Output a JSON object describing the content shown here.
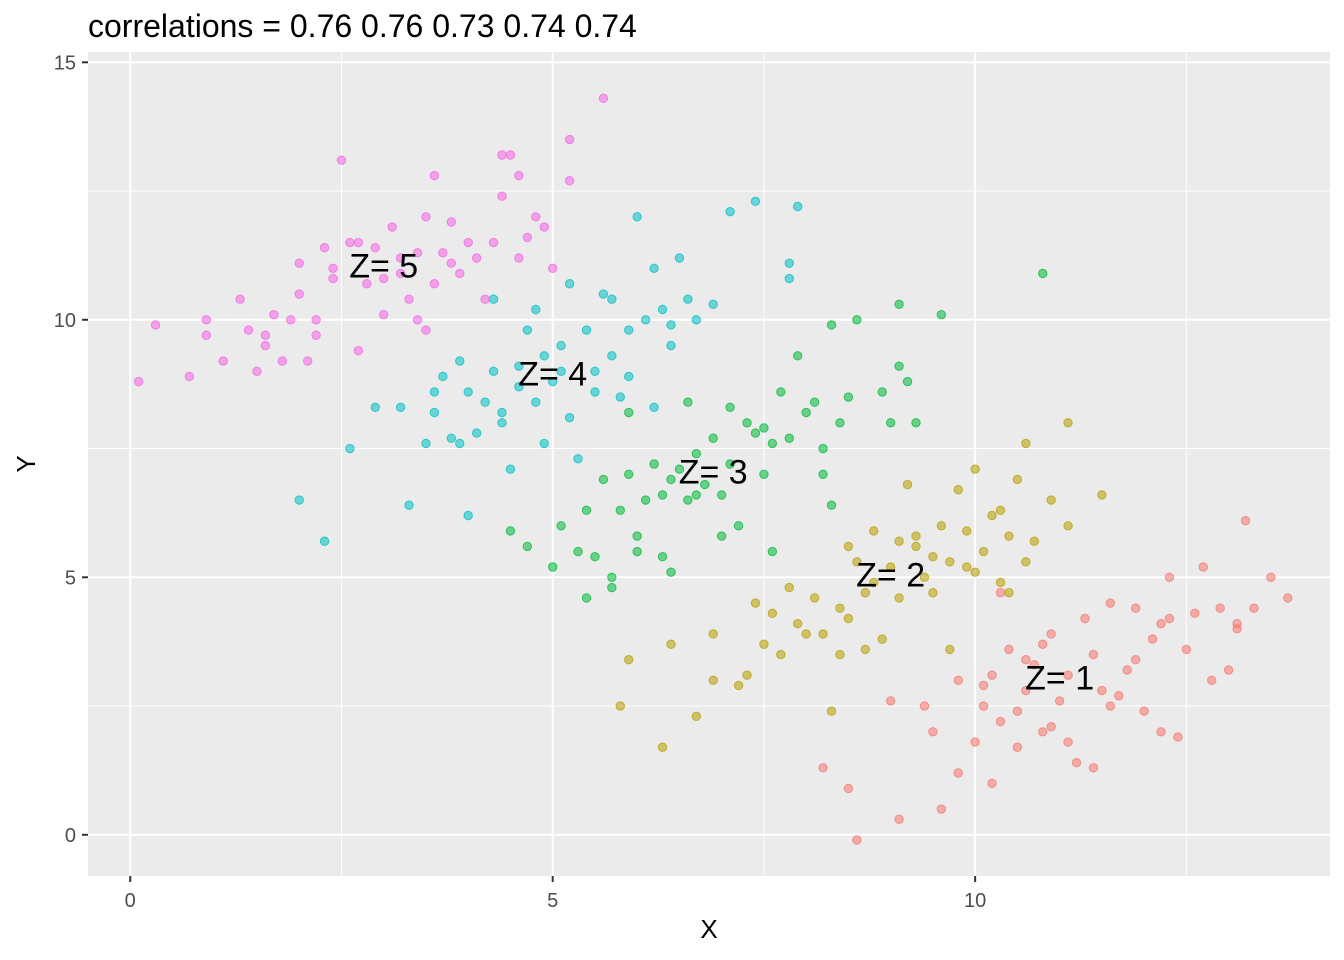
{
  "title": "correlations = 0.76 0.76 0.73 0.74 0.74",
  "chart_data": {
    "type": "scatter",
    "title": "correlations = 0.76 0.76 0.73 0.74 0.74",
    "xlabel": "X",
    "ylabel": "Y",
    "xlim": [
      -0.5,
      14.2
    ],
    "ylim": [
      -0.8,
      15.2
    ],
    "x_ticks": [
      0,
      5,
      10
    ],
    "y_ticks": [
      0,
      5,
      10,
      15
    ],
    "grid": true,
    "background": "#ebebeb",
    "legend": "none",
    "point_opacity": 0.55,
    "series": [
      {
        "name": "Z= 1",
        "color": "#F8766D",
        "label_at": [
          11.0,
          3.0
        ],
        "points": [
          [
            9.6,
            0.5
          ],
          [
            9.8,
            1.2
          ],
          [
            10.0,
            1.8
          ],
          [
            10.1,
            2.5
          ],
          [
            10.2,
            3.1
          ],
          [
            10.3,
            2.2
          ],
          [
            10.4,
            3.6
          ],
          [
            10.5,
            1.7
          ],
          [
            10.5,
            2.4
          ],
          [
            10.6,
            2.8
          ],
          [
            10.7,
            3.3
          ],
          [
            10.8,
            2.0
          ],
          [
            10.9,
            3.9
          ],
          [
            11.0,
            2.6
          ],
          [
            11.1,
            3.1
          ],
          [
            11.2,
            1.4
          ],
          [
            11.3,
            4.2
          ],
          [
            11.4,
            3.5
          ],
          [
            11.5,
            2.8
          ],
          [
            11.6,
            2.5
          ],
          [
            11.8,
            3.2
          ],
          [
            11.9,
            4.4
          ],
          [
            12.0,
            2.4
          ],
          [
            12.1,
            3.8
          ],
          [
            12.2,
            4.1
          ],
          [
            12.3,
            5.0
          ],
          [
            12.4,
            1.9
          ],
          [
            12.5,
            3.6
          ],
          [
            12.6,
            4.3
          ],
          [
            12.7,
            5.2
          ],
          [
            12.9,
            4.4
          ],
          [
            13.0,
            3.2
          ],
          [
            13.1,
            4.1
          ],
          [
            13.2,
            6.1
          ],
          [
            13.3,
            4.4
          ],
          [
            13.5,
            5.0
          ],
          [
            13.7,
            4.6
          ],
          [
            9.1,
            0.3
          ],
          [
            8.5,
            0.9
          ],
          [
            8.6,
            -0.1
          ],
          [
            8.2,
            1.3
          ],
          [
            9.0,
            2.6
          ],
          [
            9.4,
            2.5
          ],
          [
            10.2,
            1.0
          ],
          [
            10.6,
            3.4
          ],
          [
            11.1,
            1.8
          ],
          [
            11.7,
            2.7
          ],
          [
            12.2,
            2.0
          ],
          [
            12.8,
            3.0
          ],
          [
            13.1,
            4.0
          ],
          [
            10.3,
            4.7
          ],
          [
            11.4,
            1.3
          ],
          [
            10.9,
            2.1
          ],
          [
            9.8,
            3.0
          ],
          [
            11.9,
            3.4
          ],
          [
            12.3,
            4.2
          ],
          [
            10.1,
            2.9
          ],
          [
            10.8,
            3.7
          ],
          [
            11.6,
            4.5
          ],
          [
            9.5,
            2.0
          ]
        ]
      },
      {
        "name": "Z= 2",
        "color": "#B79F00",
        "label_at": [
          9.0,
          5.0
        ],
        "points": [
          [
            5.8,
            2.5
          ],
          [
            5.9,
            3.4
          ],
          [
            6.3,
            1.7
          ],
          [
            6.7,
            2.3
          ],
          [
            6.9,
            3.0
          ],
          [
            7.2,
            2.9
          ],
          [
            7.3,
            3.1
          ],
          [
            7.5,
            3.7
          ],
          [
            7.6,
            4.3
          ],
          [
            7.8,
            4.8
          ],
          [
            7.9,
            4.1
          ],
          [
            8.0,
            3.9
          ],
          [
            8.1,
            4.6
          ],
          [
            8.3,
            2.4
          ],
          [
            8.4,
            3.5
          ],
          [
            8.5,
            4.2
          ],
          [
            8.6,
            5.3
          ],
          [
            8.7,
            4.7
          ],
          [
            8.8,
            5.9
          ],
          [
            8.9,
            3.8
          ],
          [
            9.0,
            5.2
          ],
          [
            9.1,
            4.6
          ],
          [
            9.2,
            6.8
          ],
          [
            9.3,
            5.6
          ],
          [
            9.4,
            5.0
          ],
          [
            9.5,
            5.4
          ],
          [
            9.6,
            6.0
          ],
          [
            9.7,
            5.3
          ],
          [
            9.8,
            6.7
          ],
          [
            9.9,
            5.9
          ],
          [
            10.0,
            7.1
          ],
          [
            10.1,
            5.5
          ],
          [
            10.2,
            6.2
          ],
          [
            10.3,
            4.9
          ],
          [
            10.4,
            5.8
          ],
          [
            10.5,
            6.9
          ],
          [
            10.6,
            7.6
          ],
          [
            10.7,
            5.7
          ],
          [
            10.9,
            6.5
          ],
          [
            11.1,
            6.0
          ],
          [
            11.1,
            8.0
          ],
          [
            11.5,
            6.6
          ],
          [
            6.4,
            3.7
          ],
          [
            6.9,
            3.9
          ],
          [
            7.4,
            4.5
          ],
          [
            8.2,
            3.9
          ],
          [
            8.7,
            3.6
          ],
          [
            9.5,
            4.7
          ],
          [
            9.9,
            5.2
          ],
          [
            10.3,
            6.3
          ],
          [
            10.4,
            4.7
          ],
          [
            8.5,
            5.6
          ],
          [
            9.7,
            3.6
          ],
          [
            8.8,
            4.9
          ],
          [
            9.1,
            5.7
          ],
          [
            7.7,
            3.5
          ],
          [
            8.4,
            4.4
          ],
          [
            9.3,
            5.8
          ],
          [
            10.0,
            5.1
          ],
          [
            10.6,
            5.3
          ]
        ]
      },
      {
        "name": "Z= 3",
        "color": "#00BA38",
        "label_at": [
          6.9,
          7.0
        ],
        "points": [
          [
            4.5,
            5.9
          ],
          [
            4.7,
            5.6
          ],
          [
            5.0,
            5.2
          ],
          [
            5.1,
            6.0
          ],
          [
            5.3,
            5.5
          ],
          [
            5.4,
            6.3
          ],
          [
            5.5,
            5.4
          ],
          [
            5.6,
            6.9
          ],
          [
            5.7,
            5.0
          ],
          [
            5.8,
            6.3
          ],
          [
            5.9,
            7.0
          ],
          [
            6.0,
            5.8
          ],
          [
            6.1,
            6.5
          ],
          [
            6.2,
            7.2
          ],
          [
            6.3,
            5.4
          ],
          [
            6.4,
            6.9
          ],
          [
            6.5,
            7.1
          ],
          [
            6.6,
            6.5
          ],
          [
            6.7,
            7.4
          ],
          [
            6.8,
            6.8
          ],
          [
            6.9,
            7.7
          ],
          [
            7.0,
            6.6
          ],
          [
            7.1,
            7.2
          ],
          [
            7.2,
            6.0
          ],
          [
            7.3,
            8.0
          ],
          [
            7.4,
            7.8
          ],
          [
            7.5,
            7.0
          ],
          [
            7.6,
            5.5
          ],
          [
            7.7,
            8.6
          ],
          [
            7.8,
            7.7
          ],
          [
            7.9,
            9.3
          ],
          [
            8.0,
            8.2
          ],
          [
            8.1,
            8.4
          ],
          [
            8.2,
            7.0
          ],
          [
            8.3,
            9.9
          ],
          [
            8.4,
            8.0
          ],
          [
            8.5,
            8.5
          ],
          [
            8.6,
            10.0
          ],
          [
            8.9,
            8.6
          ],
          [
            9.0,
            8.0
          ],
          [
            9.1,
            10.3
          ],
          [
            9.2,
            8.8
          ],
          [
            9.3,
            8.0
          ],
          [
            9.6,
            10.1
          ],
          [
            10.8,
            10.9
          ],
          [
            5.4,
            4.6
          ],
          [
            5.7,
            4.8
          ],
          [
            6.0,
            5.5
          ],
          [
            6.4,
            5.1
          ],
          [
            6.7,
            6.6
          ],
          [
            7.1,
            8.3
          ],
          [
            7.6,
            7.6
          ],
          [
            8.3,
            6.4
          ],
          [
            9.1,
            9.1
          ],
          [
            7.5,
            7.9
          ],
          [
            6.6,
            8.4
          ],
          [
            5.9,
            8.2
          ],
          [
            6.3,
            6.6
          ],
          [
            7.0,
            5.8
          ],
          [
            8.2,
            7.5
          ]
        ]
      },
      {
        "name": "Z= 4",
        "color": "#00BFC4",
        "label_at": [
          5.0,
          8.9
        ],
        "points": [
          [
            2.0,
            6.5
          ],
          [
            2.3,
            5.7
          ],
          [
            2.6,
            7.5
          ],
          [
            2.9,
            8.3
          ],
          [
            3.2,
            8.3
          ],
          [
            3.3,
            6.4
          ],
          [
            3.5,
            7.6
          ],
          [
            3.6,
            8.2
          ],
          [
            3.7,
            8.9
          ],
          [
            3.8,
            7.7
          ],
          [
            3.9,
            9.2
          ],
          [
            4.0,
            8.6
          ],
          [
            4.1,
            7.8
          ],
          [
            4.2,
            8.4
          ],
          [
            4.3,
            9.0
          ],
          [
            4.4,
            8.0
          ],
          [
            4.5,
            7.1
          ],
          [
            4.6,
            8.7
          ],
          [
            4.7,
            9.8
          ],
          [
            4.8,
            8.4
          ],
          [
            4.9,
            9.3
          ],
          [
            5.0,
            8.8
          ],
          [
            5.1,
            9.5
          ],
          [
            5.2,
            8.1
          ],
          [
            5.3,
            7.3
          ],
          [
            5.4,
            9.8
          ],
          [
            5.5,
            8.6
          ],
          [
            5.6,
            10.5
          ],
          [
            5.7,
            9.3
          ],
          [
            5.8,
            8.5
          ],
          [
            5.9,
            9.8
          ],
          [
            6.0,
            12.0
          ],
          [
            6.1,
            10.0
          ],
          [
            6.2,
            8.3
          ],
          [
            6.3,
            10.2
          ],
          [
            6.4,
            9.5
          ],
          [
            6.5,
            11.2
          ],
          [
            6.6,
            10.4
          ],
          [
            6.7,
            10.0
          ],
          [
            6.9,
            10.3
          ],
          [
            7.1,
            12.1
          ],
          [
            7.4,
            12.3
          ],
          [
            7.8,
            11.1
          ],
          [
            7.9,
            12.2
          ],
          [
            4.0,
            6.2
          ],
          [
            3.6,
            8.6
          ],
          [
            4.3,
            10.4
          ],
          [
            4.6,
            9.1
          ],
          [
            4.9,
            7.6
          ],
          [
            5.2,
            10.7
          ],
          [
            5.5,
            9.0
          ],
          [
            5.9,
            8.9
          ],
          [
            6.2,
            11.0
          ],
          [
            4.4,
            8.2
          ],
          [
            4.8,
            10.2
          ],
          [
            5.1,
            9.0
          ],
          [
            5.7,
            10.4
          ],
          [
            6.4,
            9.9
          ],
          [
            3.9,
            7.6
          ],
          [
            7.8,
            10.8
          ]
        ]
      },
      {
        "name": "Z= 5",
        "color": "#F564E3",
        "label_at": [
          3.0,
          11.0
        ],
        "points": [
          [
            0.1,
            8.8
          ],
          [
            0.3,
            9.9
          ],
          [
            0.7,
            8.9
          ],
          [
            0.9,
            9.7
          ],
          [
            1.1,
            9.2
          ],
          [
            1.3,
            10.4
          ],
          [
            1.5,
            9.0
          ],
          [
            1.6,
            9.7
          ],
          [
            1.7,
            10.1
          ],
          [
            1.8,
            9.2
          ],
          [
            1.9,
            10.0
          ],
          [
            2.0,
            11.1
          ],
          [
            2.1,
            9.2
          ],
          [
            2.2,
            10.0
          ],
          [
            2.3,
            11.4
          ],
          [
            2.4,
            10.8
          ],
          [
            2.5,
            13.1
          ],
          [
            2.6,
            11.5
          ],
          [
            2.7,
            9.4
          ],
          [
            2.8,
            10.7
          ],
          [
            2.9,
            11.4
          ],
          [
            3.0,
            10.1
          ],
          [
            3.1,
            11.8
          ],
          [
            3.2,
            10.9
          ],
          [
            3.3,
            10.4
          ],
          [
            3.4,
            11.3
          ],
          [
            3.5,
            12.0
          ],
          [
            3.6,
            10.7
          ],
          [
            3.7,
            11.3
          ],
          [
            3.8,
            11.9
          ],
          [
            3.9,
            10.9
          ],
          [
            4.0,
            11.5
          ],
          [
            4.1,
            11.2
          ],
          [
            4.2,
            10.4
          ],
          [
            4.3,
            11.5
          ],
          [
            4.4,
            12.4
          ],
          [
            4.5,
            13.2
          ],
          [
            4.6,
            11.2
          ],
          [
            4.7,
            11.6
          ],
          [
            4.8,
            12.0
          ],
          [
            5.0,
            11.0
          ],
          [
            5.2,
            12.7
          ],
          [
            5.2,
            13.5
          ],
          [
            5.6,
            14.3
          ],
          [
            4.6,
            12.8
          ],
          [
            3.6,
            12.8
          ],
          [
            0.9,
            10.0
          ],
          [
            1.4,
            9.8
          ],
          [
            2.0,
            10.5
          ],
          [
            2.4,
            11.0
          ],
          [
            3.0,
            10.8
          ],
          [
            3.4,
            10.0
          ],
          [
            3.8,
            11.1
          ],
          [
            4.4,
            13.2
          ],
          [
            2.7,
            11.5
          ],
          [
            3.2,
            11.2
          ],
          [
            2.2,
            9.7
          ],
          [
            1.6,
            9.5
          ],
          [
            3.5,
            9.8
          ],
          [
            4.9,
            11.8
          ]
        ]
      }
    ]
  }
}
